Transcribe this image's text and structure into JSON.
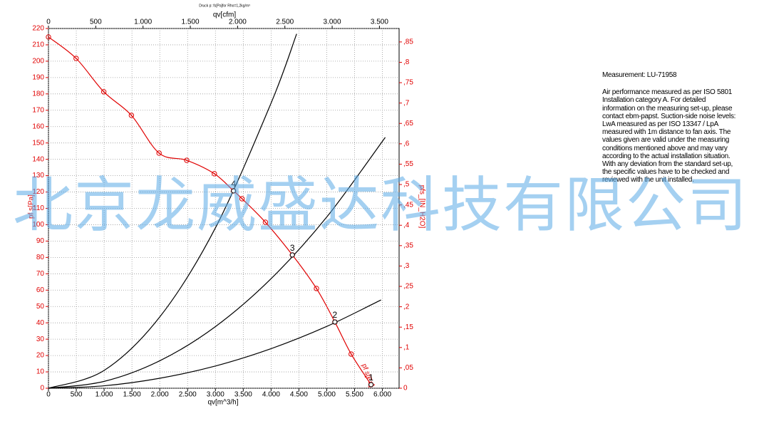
{
  "chart_data": {
    "type": "line",
    "title": "Druck p: fs[Pa]for Rho=1,2kg/m³",
    "x_label": "qv[m^3/h]",
    "x2_label": "qv[cfm]",
    "y_label": "pf s[Pa]",
    "y2_label": "pfs_[IN_H2O]",
    "curve_label": "pf s[Pa]",
    "xlim": [
      0,
      6300
    ],
    "xticks": [
      0,
      500,
      {
        "value": 1000,
        "label": "1.000"
      },
      {
        "value": 1500,
        "label": "1.500"
      },
      {
        "value": 2000,
        "label": "2.000"
      },
      {
        "value": 2500,
        "label": "2.500"
      },
      {
        "value": 3000,
        "label": "3.000"
      },
      {
        "value": 3500,
        "label": "3.500"
      },
      {
        "value": 4000,
        "label": "4.000"
      },
      {
        "value": 4500,
        "label": "4.500"
      },
      {
        "value": 5000,
        "label": "5.000"
      },
      {
        "value": 5500,
        "label": "5.500"
      },
      {
        "value": 6000,
        "label": "6.000"
      }
    ],
    "x2lim": [
      0,
      3708
    ],
    "x2ticks": [
      0,
      500,
      {
        "value": 1000,
        "label": "1.000"
      },
      {
        "value": 1500,
        "label": "1.500"
      },
      {
        "value": 2000,
        "label": "2.000"
      },
      {
        "value": 2500,
        "label": "2.500"
      },
      {
        "value": 3000,
        "label": "3.000"
      },
      {
        "value": 3500,
        "label": "3.500"
      }
    ],
    "ylim": [
      0,
      220
    ],
    "yticks": [
      0,
      10,
      20,
      30,
      40,
      50,
      60,
      70,
      80,
      90,
      100,
      110,
      120,
      130,
      140,
      150,
      160,
      170,
      180,
      190,
      200,
      210,
      220
    ],
    "y2lim": [
      0,
      0.883
    ],
    "y2ticks": [
      0,
      {
        "value": 0.05,
        "label": ",05"
      },
      {
        "value": 0.1,
        "label": ",1"
      },
      {
        "value": 0.15,
        "label": ",15"
      },
      {
        "value": 0.2,
        "label": ",2"
      },
      {
        "value": 0.25,
        "label": ",25"
      },
      {
        "value": 0.3,
        "label": ",3"
      },
      {
        "value": 0.35,
        "label": ",35"
      },
      {
        "value": 0.4,
        "label": ",4"
      },
      {
        "value": 0.45,
        "label": ",45"
      },
      {
        "value": 0.5,
        "label": ",5"
      },
      {
        "value": 0.55,
        "label": ",55"
      },
      {
        "value": 0.6,
        "label": ",6"
      },
      {
        "value": 0.65,
        "label": ",65"
      },
      {
        "value": 0.7,
        "label": ",7"
      },
      {
        "value": 0.75,
        "label": ",75"
      },
      {
        "value": 0.8,
        "label": ",8"
      },
      {
        "value": 0.85,
        "label": ",85"
      }
    ],
    "grid": true,
    "series": [
      {
        "color": "#e00000",
        "markers": true,
        "smooth": true,
        "x": [
          0,
          497,
          994,
          1490,
          1987,
          2484,
          2981,
          3325,
          3478,
          3898,
          4382,
          4815,
          5146,
          5439,
          5796
        ],
        "values": [
          214.8,
          201.7,
          181.3,
          166.9,
          143.8,
          139.4,
          131.2,
          120.7,
          115.9,
          101.5,
          81.5,
          61,
          40.5,
          20.9,
          2.2
        ]
      },
      {
        "color": "#000000",
        "markers": false,
        "smooth": true,
        "x": [
          0,
          1000,
          2000,
          3000,
          4000,
          4459
        ],
        "values": [
          0,
          10.9,
          43.6,
          98.1,
          174.4,
          216.7
        ]
      },
      {
        "color": "#000000",
        "markers": false,
        "smooth": true,
        "x": [
          0,
          1000,
          2000,
          3000,
          4000,
          5000,
          6051
        ],
        "values": [
          0,
          4.2,
          16.8,
          37.7,
          67.0,
          104.7,
          153.4
        ]
      },
      {
        "color": "#000000",
        "markers": false,
        "smooth": true,
        "x": [
          0,
          1000,
          2000,
          3000,
          4000,
          5000,
          5975
        ],
        "values": [
          0,
          1.5,
          6.1,
          13.6,
          24.2,
          37.8,
          54.0
        ]
      }
    ],
    "operating_points": {
      "labels": [
        "4",
        "3",
        "2",
        "1"
      ],
      "x": [
        3325,
        4382,
        5146,
        5796
      ],
      "values": [
        120.7,
        81.5,
        40.5,
        2.2
      ]
    }
  },
  "notes": {
    "measurement": "Measurement: LU-71958",
    "text": "Air performance measured as per ISO 5801 Installation category A. For detailed information on the measuring set-up, please contact ebm-papst. Suction-side noise levels: LwA measured as per ISO 13347 / LpA measured with 1m distance to fan axis. The values given are valid under the measuring conditions mentioned above and may vary according to the actual installation situation. With any deviation from the standard set-up, the specific values have to be checked and reviewed with the unit installed."
  },
  "watermark": "北京龙威盛达科技有限公司"
}
